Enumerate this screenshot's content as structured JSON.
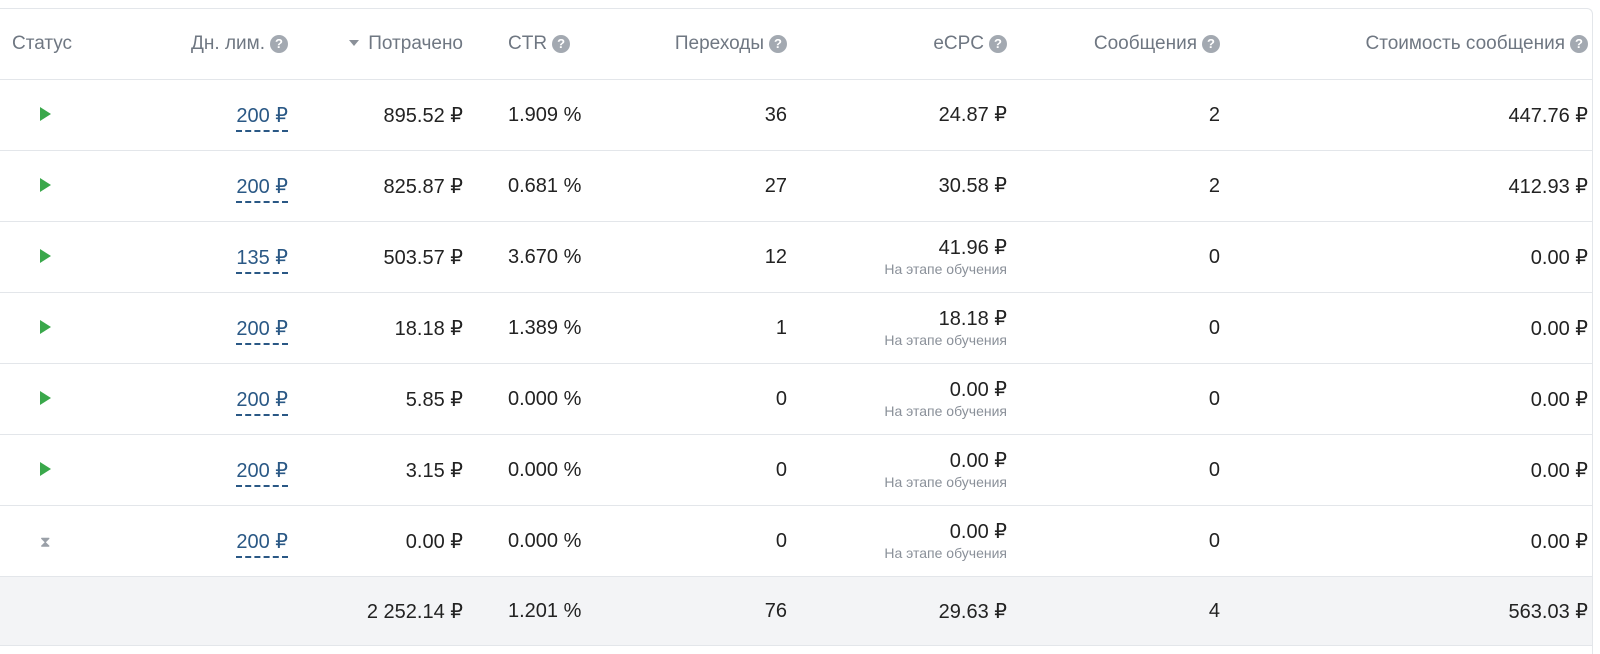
{
  "columns": {
    "status": "Статус",
    "daily_limit": "Дн. лим.",
    "spent": "Потрачено",
    "ctr": "CTR",
    "transitions": "Переходы",
    "ecpc": "eCPC",
    "messages": "Сообщения",
    "message_cost": "Стоимость сообщения"
  },
  "help_glyph": "?",
  "rows": [
    {
      "status": "play",
      "limit": "200 ₽",
      "spent": "895.52 ₽",
      "ctr": "1.909 %",
      "transitions": "36",
      "ecpc": "24.87 ₽",
      "ecpc_note": "",
      "messages": "2",
      "message_cost": "447.76 ₽"
    },
    {
      "status": "play",
      "limit": "200 ₽",
      "spent": "825.87 ₽",
      "ctr": "0.681 %",
      "transitions": "27",
      "ecpc": "30.58 ₽",
      "ecpc_note": "",
      "messages": "2",
      "message_cost": "412.93 ₽"
    },
    {
      "status": "play",
      "limit": "135 ₽",
      "spent": "503.57 ₽",
      "ctr": "3.670 %",
      "transitions": "12",
      "ecpc": "41.96 ₽",
      "ecpc_note": "На этапе обучения",
      "messages": "0",
      "message_cost": "0.00 ₽"
    },
    {
      "status": "play",
      "limit": "200 ₽",
      "spent": "18.18 ₽",
      "ctr": "1.389 %",
      "transitions": "1",
      "ecpc": "18.18 ₽",
      "ecpc_note": "На этапе обучения",
      "messages": "0",
      "message_cost": "0.00 ₽"
    },
    {
      "status": "play",
      "limit": "200 ₽",
      "spent": "5.85 ₽",
      "ctr": "0.000 %",
      "transitions": "0",
      "ecpc": "0.00 ₽",
      "ecpc_note": "На этапе обучения",
      "messages": "0",
      "message_cost": "0.00 ₽"
    },
    {
      "status": "play",
      "limit": "200 ₽",
      "spent": "3.15 ₽",
      "ctr": "0.000 %",
      "transitions": "0",
      "ecpc": "0.00 ₽",
      "ecpc_note": "На этапе обучения",
      "messages": "0",
      "message_cost": "0.00 ₽"
    },
    {
      "status": "hourglass",
      "limit": "200 ₽",
      "spent": "0.00 ₽",
      "ctr": "0.000 %",
      "transitions": "0",
      "ecpc": "0.00 ₽",
      "ecpc_note": "На этапе обучения",
      "messages": "0",
      "message_cost": "0.00 ₽"
    }
  ],
  "totals": {
    "spent": "2 252.14 ₽",
    "ctr": "1.201 %",
    "transitions": "76",
    "ecpc": "29.63 ₽",
    "messages": "4",
    "message_cost": "563.03 ₽"
  },
  "icons": {
    "active": "play-icon",
    "pending": "hourglass-icon",
    "hourglass_glyph": "⧗"
  },
  "colors": {
    "active_green": "#3aa84b",
    "link_blue": "#2a5885",
    "help_gray": "#a3a9b1",
    "totals_bg": "#f3f4f6"
  }
}
